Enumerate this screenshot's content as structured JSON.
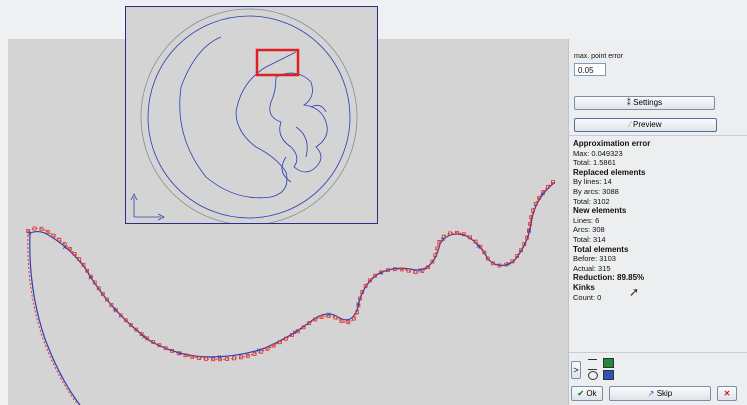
{
  "panel": {
    "max_point_error_label": "max. point error",
    "max_point_error_value": "0.05",
    "settings_label": "Settings",
    "preview_label": "Preview",
    "stats": {
      "approx_title": "Approximation error",
      "approx_max": "Max: 0.049323",
      "approx_total": "Total: 1.5861",
      "replaced_title": "Replaced elements",
      "replaced_lines": "By lines: 14",
      "replaced_arcs": "By arcs: 3088",
      "replaced_total": "Total: 3102",
      "new_title": "New elements",
      "new_lines": "Lines: 6",
      "new_arcs": "Arcs: 308",
      "new_total": "Total: 314",
      "total_title": "Total elements",
      "total_before": "Before: 3103",
      "total_actual": "Actual: 315",
      "reduction": "Reduction: 89.85%",
      "kinks_title": "Kinks",
      "kinks_count": "Count: 0"
    },
    "expand_label": ">",
    "ok_label": "Ok",
    "skip_label": "Skip",
    "close_label": "✕"
  },
  "colors": {
    "original_points": "#e0302a",
    "approximation": "#2a3fb3",
    "swatch_green": "#1f8a3a",
    "swatch_blue": "#2a56b8"
  }
}
